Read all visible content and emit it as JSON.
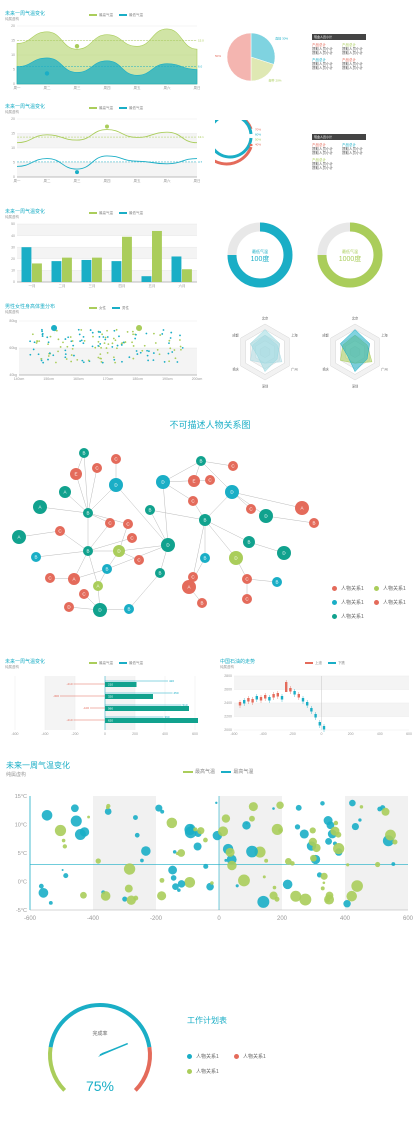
{
  "colors": {
    "teal": "#1aaec6",
    "green": "#aacd5b",
    "red": "#e46b5b",
    "pink": "#f4b5b0",
    "darkteal": "#11a28e",
    "grid": "#eeeeee"
  },
  "panels": {
    "area": {
      "title": "未来一周气温变化",
      "sub": "纯属虚构",
      "legend": [
        "最高气温",
        "最低气温"
      ]
    },
    "line": {
      "title": "未来一周气温变化",
      "sub": "纯属虚构",
      "legend": [
        "最高气温",
        "最低气温"
      ]
    },
    "bar": {
      "title": "未来一周气温变化",
      "sub": "纯属虚构",
      "legend": [
        "最高气温",
        "最低气温"
      ]
    },
    "scatter": {
      "title": "男性女性身高体重分布",
      "sub": "纯属虚构",
      "legend": [
        "女性",
        "男性"
      ]
    },
    "hbar": {
      "title": "未来一周气温变化",
      "sub": "纯属虚构",
      "legend": [
        "最高气温",
        "最低气温"
      ]
    },
    "kline": {
      "title": "中国石油的走势",
      "sub": "纯属虚构",
      "legend": [
        "上涨",
        "下跌"
      ]
    },
    "bubble": {
      "title": "未来一周气温变化",
      "sub": "纯属虚构",
      "legend": [
        "最高气温",
        "最高气温"
      ]
    }
  },
  "pie_card": {
    "head": "现金人员小计",
    "items": [
      {
        "t": "产品总计",
        "c": "#e46b5b"
      },
      {
        "t": "提取人员小计",
        "c": "#555"
      },
      {
        "t": "提取人员小计",
        "c": "#555"
      },
      {
        "t": "产品总计",
        "c": "#aacd5b"
      },
      {
        "t": "提取人员小计",
        "c": "#555"
      },
      {
        "t": "提取人员小计",
        "c": "#555"
      },
      {
        "t": "产品总计",
        "c": "#1aaec6"
      },
      {
        "t": "提取人员小计",
        "c": "#555"
      },
      {
        "t": "提取人员小计",
        "c": "#555"
      },
      {
        "t": "产品总计",
        "c": "#e46b5b"
      },
      {
        "t": "提取人员小计",
        "c": "#555"
      },
      {
        "t": "提取人员小计",
        "c": "#555"
      }
    ]
  },
  "ring_card": {
    "head": "现金人员小计",
    "items": [
      {
        "t": "产品总计",
        "c": "#e46b5b"
      },
      {
        "t": "提取人员小计",
        "c": "#555"
      },
      {
        "t": "提取人员小计",
        "c": "#555"
      },
      {
        "t": "产品总计",
        "c": "#1aaec6"
      },
      {
        "t": "提取人员小计",
        "c": "#555"
      },
      {
        "t": "提取人员小计",
        "c": "#555"
      },
      {
        "t": "产品总计",
        "c": "#aacd5b"
      },
      {
        "t": "提取人员小计",
        "c": "#555"
      },
      {
        "t": "提取人员小计",
        "c": "#555"
      }
    ]
  },
  "donut_labels": [
    {
      "label": "最低气温",
      "value": "100度"
    },
    {
      "label": "最低气温",
      "value": "1000度"
    }
  ],
  "radar_labels": [
    "北京",
    "上海",
    "广州",
    "深圳",
    "重庆",
    "成都"
  ],
  "relation_title": "不可描述人物关系图",
  "relation_legend": [
    "人物关系1",
    "人物关系1",
    "人物关系1",
    "人物关系1"
  ],
  "gauge": {
    "label": "完成率",
    "value": "75%",
    "fraction": 0.75
  },
  "plan": {
    "title": "工作计划表",
    "legend": [
      "人物关系1",
      "人物关系1",
      "人物关系1"
    ]
  },
  "chart_data": [
    {
      "type": "area",
      "x": [
        "周一",
        "周二",
        "周三",
        "周四",
        "周五",
        "周六",
        "周日"
      ],
      "series": [
        {
          "name": "最高气温",
          "values": [
            14,
            18,
            12,
            17,
            13,
            19,
            12
          ]
        },
        {
          "name": "最低气温",
          "values": [
            6,
            9,
            4,
            8,
            3,
            7,
            5
          ]
        }
      ],
      "ylim": [
        0,
        20
      ],
      "yticks": [
        "0",
        "5",
        "10",
        "15",
        "20"
      ],
      "markers": [
        {
          "label": "最高",
          "series": 0
        },
        {
          "label": "最低",
          "series": 1
        }
      ]
    },
    {
      "type": "pie",
      "slices": [
        {
          "label": "直接 30%",
          "value": 30
        },
        {
          "label": "邮件 20%",
          "value": 20
        },
        {
          "label": "联盟 50%",
          "value": 50
        }
      ]
    },
    {
      "type": "line",
      "x": [
        "周一",
        "周二",
        "周三",
        "周四",
        "周五",
        "周六",
        "周日"
      ],
      "series": [
        {
          "name": "最高气温",
          "values": [
            11,
            14,
            12,
            16,
            13,
            15,
            11
          ]
        },
        {
          "name": "最低气温",
          "values": [
            2,
            5,
            1,
            6,
            4,
            3,
            5
          ]
        }
      ],
      "ylim": [
        -2,
        20
      ],
      "yticks": [
        "0",
        "5",
        "10",
        "15",
        "20"
      ]
    },
    {
      "type": "ring",
      "rings": [
        {
          "label": "70%",
          "value": 0.7
        },
        {
          "label": "60%",
          "value": 0.6
        },
        {
          "label": "50%",
          "value": 0.5
        },
        {
          "label": "40%",
          "value": 0.4
        }
      ]
    },
    {
      "type": "bar",
      "categories": [
        "一月",
        "二月",
        "三月",
        "四月",
        "五月",
        "六月"
      ],
      "series": [
        {
          "name": "最高气温",
          "values": [
            30,
            18,
            19,
            18,
            5,
            22
          ]
        },
        {
          "name": "最低气温",
          "values": [
            16,
            21,
            21,
            39,
            44,
            11
          ]
        }
      ],
      "ylim": [
        0,
        50
      ],
      "yticks": [
        "0",
        "10",
        "20",
        "30",
        "40",
        "50"
      ]
    },
    {
      "type": "donut",
      "items": [
        {
          "label": "最低气温",
          "value": 0.75
        },
        {
          "label": "最低气温",
          "value": 0.75
        }
      ]
    },
    {
      "type": "scatter",
      "xlim": [
        140,
        200
      ],
      "ylim": [
        40,
        100
      ],
      "xticks": [
        "140cm",
        "150cm",
        "160cm",
        "170cm",
        "180cm",
        "190cm",
        "200cm"
      ],
      "yticks": [
        "40kg",
        "60kg",
        "80kg"
      ],
      "series": [
        {
          "name": "女性"
        },
        {
          "name": "男性"
        }
      ]
    },
    {
      "type": "radar",
      "indicators": [
        "北京",
        "上海",
        "广州",
        "深圳",
        "重庆",
        "成都"
      ],
      "series": [
        {
          "name": "A",
          "values": [
            0.6,
            0.5,
            0.7,
            0.4,
            0.6,
            0.5
          ]
        },
        {
          "name": "B",
          "values": [
            0.8,
            0.6,
            0.5,
            0.7,
            0.3,
            0.6
          ]
        }
      ]
    },
    {
      "type": "hbar",
      "categories": [
        "210",
        "320",
        "560",
        "620"
      ],
      "values": [
        210,
        320,
        560,
        620
      ],
      "left_labels": [
        "-210",
        "-300",
        "-100",
        "-210"
      ],
      "right_labels": [
        "420",
        "450",
        "510",
        "390"
      ],
      "xlim": [
        -600,
        600
      ],
      "xticks": [
        "-600",
        "-400",
        "-200",
        "0",
        "200",
        "400",
        "600"
      ]
    },
    {
      "type": "candlestick",
      "xticks": [
        "-600",
        "-400",
        "-200",
        "0",
        "200",
        "400",
        "600"
      ],
      "yticks": [
        "2000",
        "2200",
        "2400",
        "2600",
        "2800"
      ]
    },
    {
      "type": "scatter",
      "xlim": [
        -600,
        600
      ],
      "ylim": [
        -5,
        20
      ],
      "xticks": [
        "-600",
        "-400",
        "-200",
        "0",
        "200",
        "400",
        "600"
      ],
      "yticks": [
        "-5°C",
        "0°C",
        "5°C",
        "10°C",
        "15°C"
      ],
      "series": [
        {
          "name": "最高气温"
        },
        {
          "name": "最高气温"
        }
      ]
    },
    {
      "type": "gauge",
      "value": 75
    }
  ]
}
